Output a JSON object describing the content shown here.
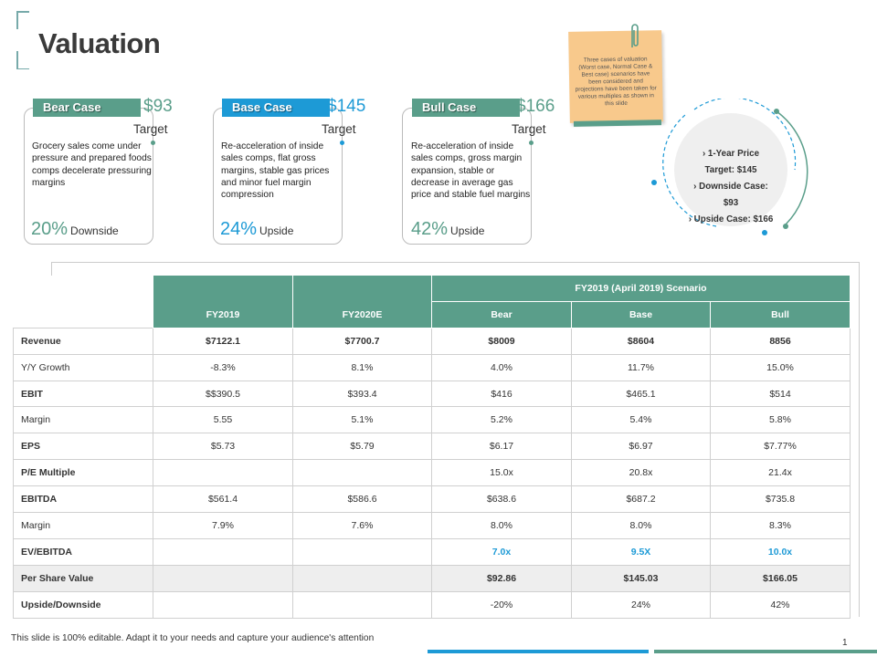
{
  "title": "Valuation",
  "colors": {
    "teal": "#5a9e8a",
    "blue": "#1d9ad6",
    "sticky": "#f8c98c"
  },
  "cases": [
    {
      "badge": "Bear Case",
      "price": "$93",
      "target": "Target",
      "desc": "Grocery sales come under pressure and prepared foods comps decelerate pressuring margins",
      "pct": "20%",
      "direction": "Downside"
    },
    {
      "badge": "Base Case",
      "price": "$145",
      "target": "Target",
      "desc": "Re-acceleration of inside sales comps, flat gross margins, stable gas prices and minor fuel margin compression",
      "pct": "24%",
      "direction": "Upside"
    },
    {
      "badge": "Bull Case",
      "price": "$166",
      "target": "Target",
      "desc": "Re-acceleration of inside sales comps, gross margin expansion, stable or decrease in average gas price and stable fuel margins",
      "pct": "42%",
      "direction": "Upside"
    }
  ],
  "note": "Three cases of valuation (Worst case, Normal Case & Best case) scenarios have been considered and projections have been taken for various multiples as shown in this slide",
  "price_summary": {
    "line1": "› 1-Year Price",
    "line2": "Target: $145",
    "line3": "› Downside Case:",
    "line4": "$93",
    "line5": "› Upside Case: $166"
  },
  "table": {
    "group_header": "FY2019 (April 2019) Scenario",
    "headers": [
      "FY2019",
      "FY2020E",
      "Bear",
      "Base",
      "Bull"
    ],
    "rows": [
      {
        "label": "Revenue",
        "cells": [
          "$7122.1",
          "$7700.7",
          "$8009",
          "$8604",
          "8856"
        ]
      },
      {
        "label": "Y/Y Growth",
        "cells": [
          "-8.3%",
          "8.1%",
          "4.0%",
          "11.7%",
          "15.0%"
        ]
      },
      {
        "label": "EBIT",
        "cells": [
          "$$390.5",
          "$393.4",
          "$416",
          "$465.1",
          "$514"
        ]
      },
      {
        "label": "Margin",
        "cells": [
          "5.55",
          "5.1%",
          "5.2%",
          "5.4%",
          "5.8%"
        ]
      },
      {
        "label": "EPS",
        "cells": [
          "$5.73",
          "$5.79",
          "$6.17",
          "$6.97",
          "$7.77%"
        ]
      },
      {
        "label": "P/E Multiple",
        "cells": [
          "",
          "",
          "15.0x",
          "20.8x",
          "21.4x"
        ]
      },
      {
        "label": "EBITDA",
        "cells": [
          "$561.4",
          "$586.6",
          "$638.6",
          "$687.2",
          "$735.8"
        ]
      },
      {
        "label": "Margin",
        "cells": [
          "7.9%",
          "7.6%",
          "8.0%",
          "8.0%",
          "8.3%"
        ]
      },
      {
        "label": "EV/EBITDA",
        "cells": [
          "",
          "",
          "7.0x",
          "9.5X",
          "10.0x"
        ]
      },
      {
        "label": "Per Share Value",
        "cells": [
          "",
          "",
          "$92.86",
          "$145.03",
          "$166.05"
        ]
      },
      {
        "label": "Upside/Downside",
        "cells": [
          "",
          "",
          "-20%",
          "24%",
          "42%"
        ]
      }
    ]
  },
  "footer": "This slide is 100% editable.  Adapt it to your needs and capture your audience's attention",
  "page_number": "1"
}
